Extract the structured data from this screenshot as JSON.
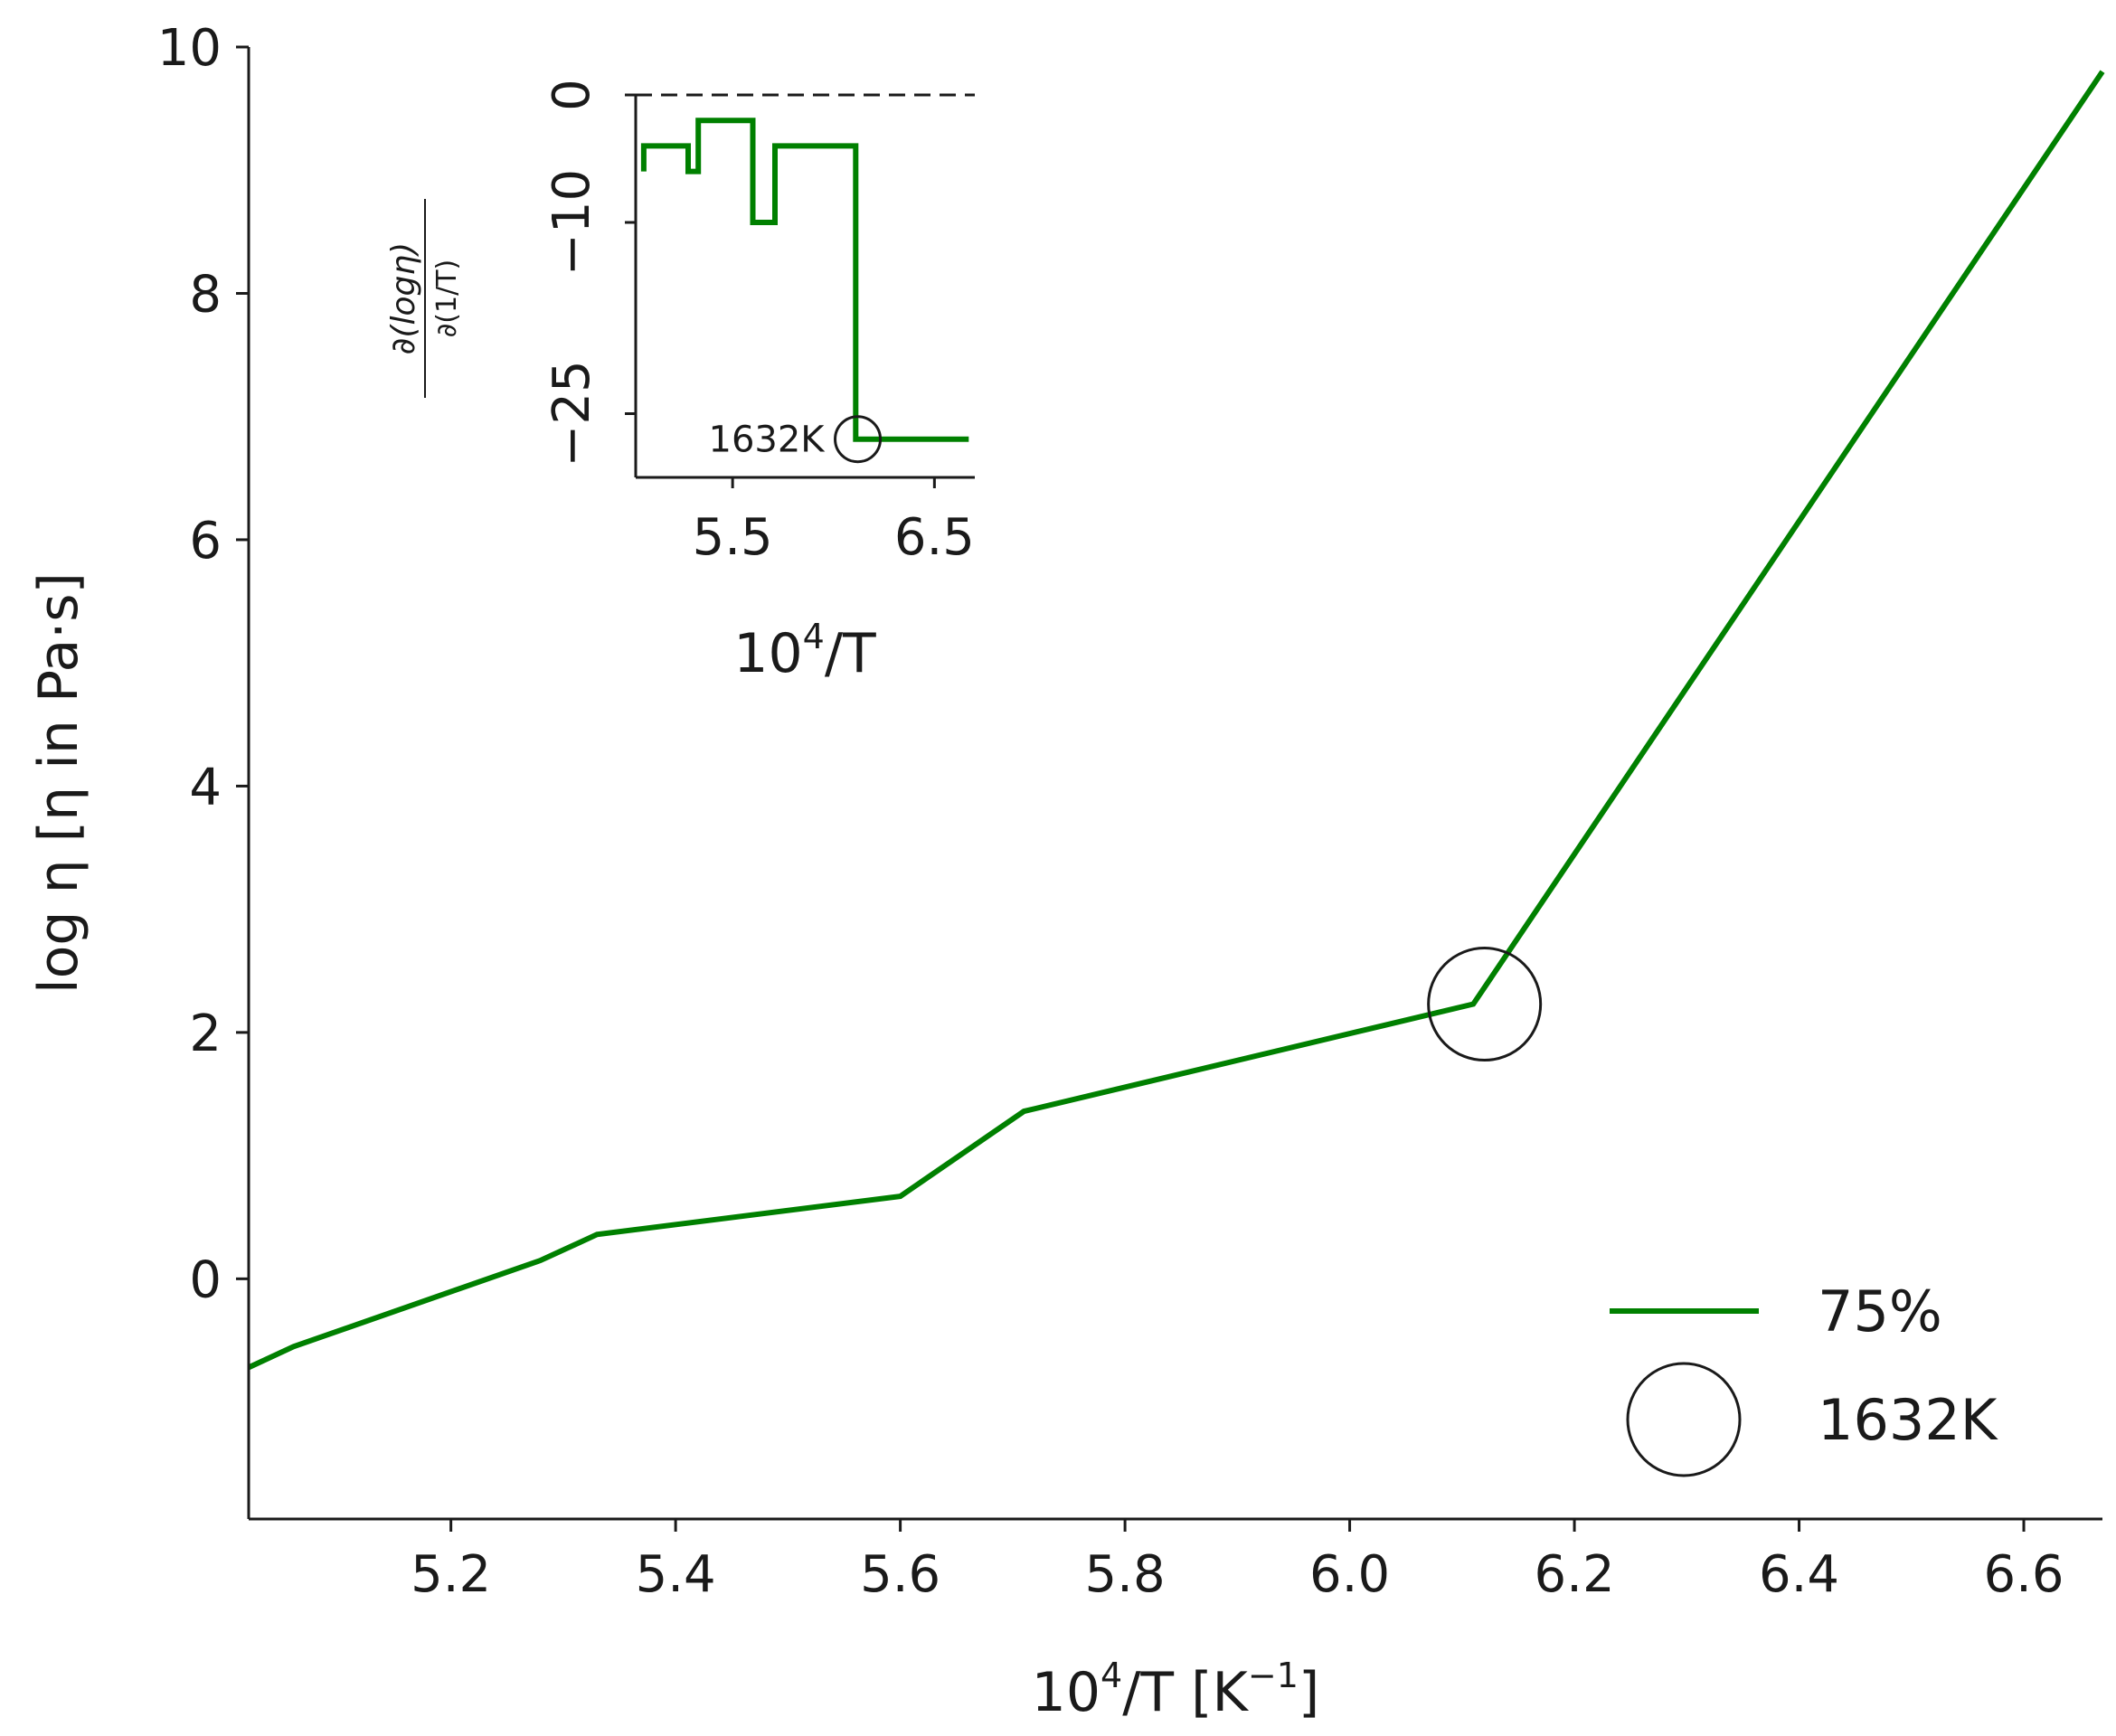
{
  "chart_data": [
    {
      "type": "line",
      "xlabel_base": "10",
      "xlabel_sup": "4",
      "xlabel_mid": "/T [K",
      "xlabel_sup2": "−1",
      "xlabel_end": "]",
      "ylabel": "log η [η in Pa·s]",
      "xlim": [
        5.02,
        6.67
      ],
      "ylim": [
        -1.95,
        10
      ],
      "x_ticks": [
        5.2,
        5.4,
        5.6,
        5.8,
        6.0,
        6.2,
        6.4,
        6.6
      ],
      "x_tick_labels": [
        "5.2",
        "5.4",
        "5.6",
        "5.8",
        "6.0",
        "6.2",
        "6.4",
        "6.6"
      ],
      "y_ticks": [
        0,
        2,
        4,
        6,
        8,
        10
      ],
      "y_tick_labels": [
        "0",
        "2",
        "4",
        "6",
        "8",
        "10"
      ],
      "series": [
        {
          "name": "75%",
          "color": "#008000",
          "x": [
            5.02,
            5.06,
            5.28,
            5.33,
            5.6,
            5.71,
            6.11,
            6.67
          ],
          "y": [
            -0.72,
            -0.55,
            0.15,
            0.36,
            0.67,
            1.36,
            2.23,
            9.8
          ]
        }
      ],
      "marker": {
        "label": "1632K",
        "x": 6.12,
        "y": 2.23,
        "color": "#1a1a1a"
      },
      "legend": {
        "position": "bottom-right",
        "entries": [
          {
            "label": "75%",
            "kind": "line",
            "color": "#008000"
          },
          {
            "label": "1632K",
            "kind": "circle",
            "color": "#1a1a1a"
          }
        ]
      }
    },
    {
      "type": "line",
      "role": "inset",
      "xlabel_base": "10",
      "xlabel_sup": "4",
      "xlabel_end": "/T",
      "ylabel_num": "∂(logη)",
      "ylabel_den": "∂(1/T)",
      "xlim": [
        5.02,
        6.7
      ],
      "ylim": [
        -30,
        0
      ],
      "x_ticks": [
        5.5,
        6.5
      ],
      "x_tick_labels": [
        "5.5",
        "6.5"
      ],
      "y_ticks": [
        0,
        -10,
        -25
      ],
      "y_tick_labels": [
        "0",
        "−10",
        "−25"
      ],
      "reference_line": {
        "y": 0,
        "style": "dashed"
      },
      "series": [
        {
          "name": "derivative",
          "color": "#008000",
          "x": [
            5.06,
            5.06,
            5.28,
            5.28,
            5.33,
            5.33,
            5.6,
            5.6,
            5.71,
            5.71,
            6.11,
            6.11,
            6.67
          ],
          "y": [
            -6,
            -4,
            -4,
            -6,
            -6,
            -2,
            -2,
            -10,
            -10,
            -4,
            -4,
            -27,
            -27
          ]
        }
      ],
      "marker": {
        "label": "1632K",
        "x": 6.12,
        "y": -27,
        "color": "#1a1a1a"
      }
    }
  ]
}
